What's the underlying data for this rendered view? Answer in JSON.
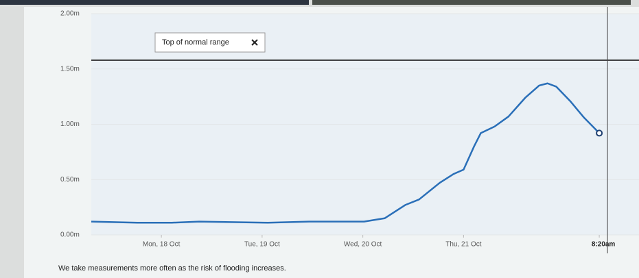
{
  "chart_data": {
    "type": "line",
    "x": [
      -16.7,
      -5.7,
      2.5,
      9,
      25.4,
      35.2,
      48.3,
      53.2,
      58.1,
      61.4,
      66.3,
      69.6,
      72,
      74.5,
      76.1,
      79.4,
      82.7,
      86.7,
      90,
      92,
      94.1,
      97.4,
      100.7,
      104.33
    ],
    "values": [
      0.12,
      0.11,
      0.11,
      0.12,
      0.11,
      0.12,
      0.12,
      0.15,
      0.27,
      0.32,
      0.47,
      0.55,
      0.59,
      0.8,
      0.92,
      0.98,
      1.07,
      1.24,
      1.35,
      1.37,
      1.34,
      1.21,
      1.06,
      0.92
    ],
    "color": "#2a6fb8",
    "xlim": [
      -16.7,
      112
    ],
    "xticks": [
      {
        "value": 0,
        "label": "Mon, 18 Oct"
      },
      {
        "value": 24,
        "label": "Tue, 19 Oct"
      },
      {
        "value": 48,
        "label": "Wed, 20 Oct"
      },
      {
        "value": 72,
        "label": "Thu, 21 Oct"
      },
      {
        "value": 104.33,
        "label": "8:20am"
      }
    ],
    "ylim": [
      0,
      2
    ],
    "yticks": [
      {
        "value": 0,
        "label": "0.00m"
      },
      {
        "value": 0.5,
        "label": "0.50m"
      },
      {
        "value": 1,
        "label": "1.00m"
      },
      {
        "value": 1.5,
        "label": "1.50m"
      },
      {
        "value": 2,
        "label": "2.00m"
      }
    ],
    "annotation": {
      "text": "Top of normal range",
      "value": 1.58
    },
    "caption": "We take measurements more often as the risk of flooding increases."
  }
}
